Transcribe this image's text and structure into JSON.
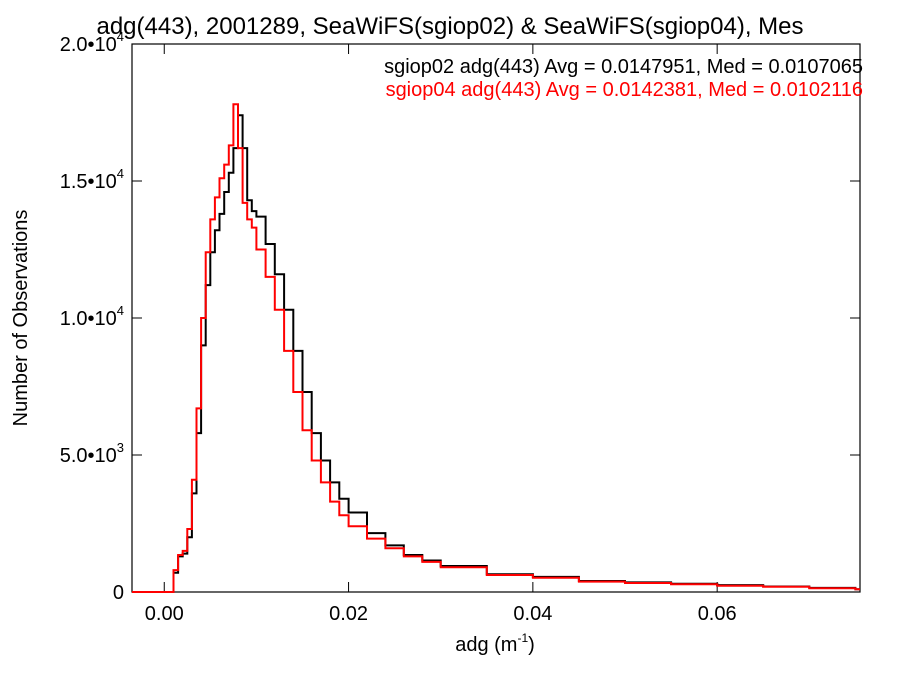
{
  "chart_data": {
    "type": "line",
    "title": "adg(443), 2001289, SeaWiFS(sgiop02) & SeaWiFS(sgiop04), Mes",
    "xlabel": "adg (m",
    "xlabel_sup": "-1",
    "xlabel_close": ")",
    "ylabel": "Number of Observations",
    "xlim": [
      -0.0035,
      0.0755
    ],
    "ylim": [
      0,
      20000
    ],
    "xticks": [
      0.0,
      0.02,
      0.04,
      0.06
    ],
    "xtick_labels": [
      "0.00",
      "0.02",
      "0.04",
      "0.06"
    ],
    "yticks": [
      0,
      5000,
      10000,
      15000,
      20000
    ],
    "ytick_labels": [
      {
        "base": "0",
        "exp": ""
      },
      {
        "base": "5.0•10",
        "exp": "3"
      },
      {
        "base": "1.0•10",
        "exp": "4"
      },
      {
        "base": "1.5•10",
        "exp": "4"
      },
      {
        "base": "2.0•10",
        "exp": "4"
      }
    ],
    "legend_position": "top-right",
    "grid": false,
    "series": [
      {
        "name": "sgiop02 adg(443) Avg = 0.0147951, Med = 0.0107065",
        "color": "#000000",
        "x": [
          -0.0035,
          0.0005,
          0.001,
          0.0015,
          0.002,
          0.0025,
          0.003,
          0.0035,
          0.004,
          0.0045,
          0.005,
          0.0055,
          0.006,
          0.0065,
          0.007,
          0.0075,
          0.008,
          0.0085,
          0.009,
          0.0095,
          0.01,
          0.011,
          0.012,
          0.013,
          0.014,
          0.015,
          0.016,
          0.017,
          0.018,
          0.019,
          0.02,
          0.022,
          0.024,
          0.026,
          0.028,
          0.03,
          0.035,
          0.04,
          0.045,
          0.05,
          0.055,
          0.06,
          0.065,
          0.07,
          0.075
        ],
        "y": [
          0,
          0,
          700,
          1300,
          1400,
          2000,
          3600,
          5800,
          9000,
          11200,
          12400,
          13200,
          13800,
          14600,
          15300,
          16200,
          17400,
          16200,
          14300,
          13900,
          13700,
          12700,
          11600,
          10300,
          8800,
          7300,
          5800,
          4800,
          4000,
          3400,
          2900,
          2150,
          1700,
          1350,
          1150,
          950,
          650,
          550,
          400,
          350,
          300,
          250,
          200,
          150,
          100
        ]
      },
      {
        "name": "sgiop04 adg(443) Avg = 0.0142381, Med = 0.0102116",
        "color": "#ff0000",
        "x": [
          -0.0035,
          0.0005,
          0.001,
          0.0015,
          0.002,
          0.0025,
          0.003,
          0.0035,
          0.004,
          0.0045,
          0.005,
          0.0055,
          0.006,
          0.0065,
          0.007,
          0.0075,
          0.008,
          0.0085,
          0.009,
          0.0095,
          0.01,
          0.011,
          0.012,
          0.013,
          0.014,
          0.015,
          0.016,
          0.017,
          0.018,
          0.019,
          0.02,
          0.022,
          0.024,
          0.026,
          0.028,
          0.03,
          0.035,
          0.04,
          0.045,
          0.05,
          0.055,
          0.06,
          0.065,
          0.07,
          0.075
        ],
        "y": [
          0,
          0,
          800,
          1350,
          1500,
          2300,
          4100,
          6700,
          10000,
          12400,
          13600,
          14400,
          15100,
          15600,
          16300,
          17800,
          16200,
          14200,
          13600,
          13300,
          12500,
          11500,
          10300,
          8800,
          7300,
          5900,
          4800,
          4000,
          3300,
          2800,
          2400,
          1950,
          1600,
          1300,
          1100,
          900,
          620,
          520,
          380,
          330,
          280,
          230,
          190,
          140,
          100
        ]
      }
    ]
  }
}
